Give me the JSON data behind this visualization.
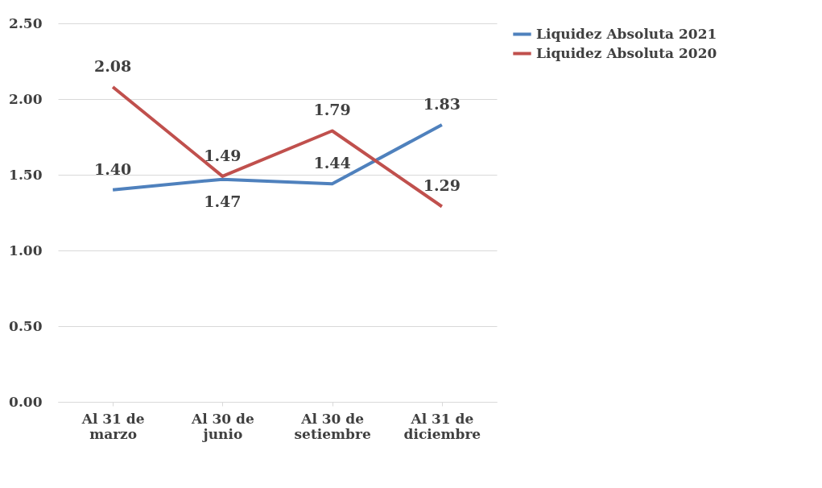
{
  "chart_data": {
    "type": "line",
    "categories": [
      "Al 31 de\nmarzo",
      "Al 30 de\njunio",
      "Al 30 de\nsetiembre",
      "Al 31 de\ndiciembre"
    ],
    "series": [
      {
        "name": "Liquidez Absoluta 2021",
        "color": "#4f81bd",
        "values": [
          1.4,
          1.47,
          1.44,
          1.83
        ],
        "value_labels": [
          "1.40",
          "1.47",
          "1.44",
          "1.83"
        ]
      },
      {
        "name": "Liquidez Absoluta 2020",
        "color": "#c0504d",
        "values": [
          2.08,
          1.49,
          1.79,
          1.29
        ],
        "value_labels": [
          "2.08",
          "1.49",
          "1.79",
          "1.29"
        ]
      }
    ],
    "ylim": [
      0,
      2.5
    ],
    "yticks": [
      {
        "value": 0,
        "label": "0.00"
      },
      {
        "value": 0.5,
        "label": "0.50"
      },
      {
        "value": 1,
        "label": "1.00"
      },
      {
        "value": 1.5,
        "label": "1.50"
      },
      {
        "value": 2,
        "label": "2.00"
      },
      {
        "value": 2.5,
        "label": "2.50"
      }
    ],
    "grid": "y",
    "legend": "right",
    "marker": "none",
    "line_style": "solid"
  }
}
